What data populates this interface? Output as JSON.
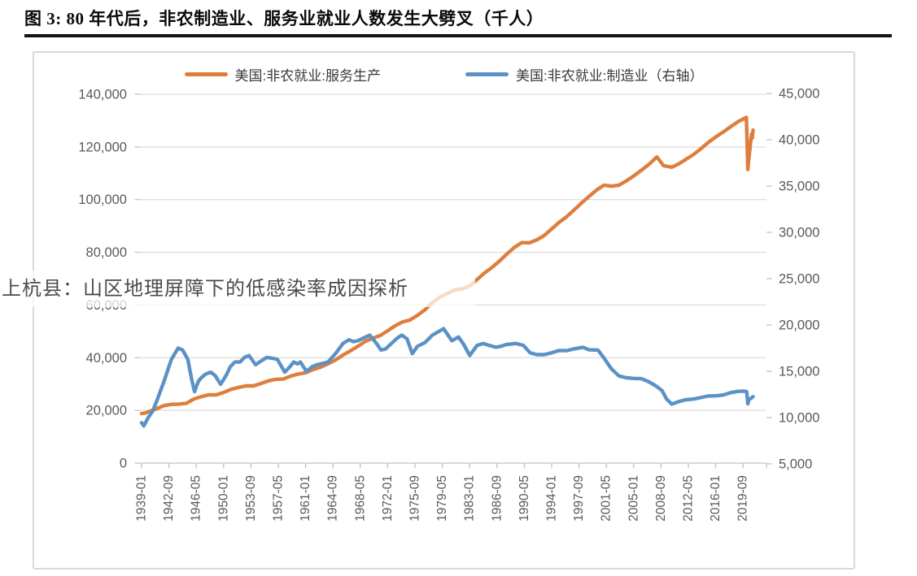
{
  "figure": {
    "title": "图 3: 80 年代后，非农制造业、服务业就业人数发生大劈叉（千人）",
    "unit": "千人"
  },
  "watermark": {
    "text": "上杭县：山区地理屏障下的低感染率成因探析"
  },
  "legend": {
    "items": [
      {
        "label": "美国:非农就业:服务生产",
        "color": "#DE7E3D"
      },
      {
        "label": "美国:非农就业:制造业（右轴）",
        "color": "#5B92C6"
      }
    ]
  },
  "colors": {
    "services_line": "#DE7E3D",
    "manufacturing_line": "#5B92C6",
    "gridline": "#DADADA",
    "axis_line": "#C2C2C2",
    "axis_text": "#595959",
    "title_text": "#0a0a0a"
  },
  "chart_data": {
    "type": "line",
    "title": "图 3: 80 年代后，非农制造业、服务业就业人数发生大劈叉（千人）",
    "unit": "千人",
    "grid": "horizontal",
    "legend_position": "top",
    "x_axis": {
      "start": "1939-01",
      "end": "2020-12",
      "tick_interval_months": 44,
      "tick_labels": [
        "1939-01",
        "1942-09",
        "1946-05",
        "1950-01",
        "1953-09",
        "1957-05",
        "1961-01",
        "1964-09",
        "1968-05",
        "1972-01",
        "1975-09",
        "1979-05",
        "1983-01",
        "1986-09",
        "1990-05",
        "1994-01",
        "1997-09",
        "2001-05",
        "2005-01",
        "2008-09",
        "2012-05",
        "2016-01",
        "2019-09"
      ]
    },
    "y_axis_left": {
      "min": 0,
      "max": 140000,
      "step": 20000,
      "tick_values": [
        140000,
        120000,
        100000,
        80000,
        60000,
        40000,
        20000,
        0
      ],
      "tick_labels": [
        "140,000",
        "120,000",
        "100,000",
        "80,000",
        "60,000",
        "40,000",
        "20,000",
        "0"
      ]
    },
    "y_axis_right": {
      "min": 5000,
      "max": 45000,
      "step": 5000,
      "tick_values": [
        45000,
        40000,
        35000,
        30000,
        25000,
        20000,
        15000,
        10000,
        5000
      ],
      "tick_labels": [
        "45,000",
        "40,000",
        "35,000",
        "30,000",
        "25,000",
        "20,000",
        "15,000",
        "10,000",
        "5,000"
      ]
    },
    "series": [
      {
        "name": "美国:非农就业:服务生产",
        "axis": "left",
        "color": "#DE7E3D",
        "points": [
          [
            1939.0,
            18800
          ],
          [
            1939.5,
            19000
          ],
          [
            1940,
            19600
          ],
          [
            1941,
            20600
          ],
          [
            1942,
            21800
          ],
          [
            1943,
            22300
          ],
          [
            1944,
            22400
          ],
          [
            1945,
            22700
          ],
          [
            1946,
            24300
          ],
          [
            1947,
            25200
          ],
          [
            1948,
            25900
          ],
          [
            1949,
            25900
          ],
          [
            1950,
            26800
          ],
          [
            1951,
            28000
          ],
          [
            1952,
            28700
          ],
          [
            1953,
            29300
          ],
          [
            1954,
            29300
          ],
          [
            1955,
            30200
          ],
          [
            1956,
            31200
          ],
          [
            1957,
            31800
          ],
          [
            1958,
            31900
          ],
          [
            1959,
            33000
          ],
          [
            1960,
            33800
          ],
          [
            1961,
            34300
          ],
          [
            1962,
            35500
          ],
          [
            1963,
            36400
          ],
          [
            1964,
            37700
          ],
          [
            1965,
            39100
          ],
          [
            1966,
            41000
          ],
          [
            1967,
            42600
          ],
          [
            1968,
            44300
          ],
          [
            1969,
            46200
          ],
          [
            1970,
            47400
          ],
          [
            1971,
            48400
          ],
          [
            1972,
            50200
          ],
          [
            1973,
            52100
          ],
          [
            1974,
            53600
          ],
          [
            1975,
            54300
          ],
          [
            1976,
            56100
          ],
          [
            1977,
            58200
          ],
          [
            1978,
            60900
          ],
          [
            1979,
            63000
          ],
          [
            1980,
            64400
          ],
          [
            1981,
            65700
          ],
          [
            1982,
            66100
          ],
          [
            1983,
            67200
          ],
          [
            1984,
            69700
          ],
          [
            1985,
            72200
          ],
          [
            1986,
            74300
          ],
          [
            1987,
            76700
          ],
          [
            1988,
            79400
          ],
          [
            1989,
            81900
          ],
          [
            1990,
            83700
          ],
          [
            1991,
            83600
          ],
          [
            1992,
            84700
          ],
          [
            1993,
            86400
          ],
          [
            1994,
            88900
          ],
          [
            1995,
            91400
          ],
          [
            1996,
            93500
          ],
          [
            1997,
            96100
          ],
          [
            1998,
            98700
          ],
          [
            1999,
            101200
          ],
          [
            2000,
            103600
          ],
          [
            2001,
            105500
          ],
          [
            2002,
            105100
          ],
          [
            2003,
            105500
          ],
          [
            2004,
            107100
          ],
          [
            2005,
            109000
          ],
          [
            2006,
            111100
          ],
          [
            2007,
            113300
          ],
          [
            2008.1,
            116200
          ],
          [
            2009,
            112900
          ],
          [
            2010.1,
            112300
          ],
          [
            2011,
            113500
          ],
          [
            2012,
            115300
          ],
          [
            2013,
            117100
          ],
          [
            2014,
            119300
          ],
          [
            2015,
            121700
          ],
          [
            2016,
            123800
          ],
          [
            2017,
            125700
          ],
          [
            2018,
            127700
          ],
          [
            2019,
            129600
          ],
          [
            2020.1,
            131200
          ],
          [
            2020.3,
            111400
          ],
          [
            2020.5,
            117200
          ],
          [
            2020.65,
            121200
          ],
          [
            2020.8,
            124900
          ],
          [
            2020.9,
            123400
          ],
          [
            2021.0,
            126400
          ]
        ]
      },
      {
        "name": "美国:非农就业:制造业",
        "axis": "right",
        "color": "#5B92C6",
        "points": [
          [
            1939.0,
            9450
          ],
          [
            1939.3,
            9100
          ],
          [
            1939.9,
            10000
          ],
          [
            1940.5,
            10700
          ],
          [
            1941.0,
            11700
          ],
          [
            1942.0,
            13900
          ],
          [
            1943.0,
            16300
          ],
          [
            1943.9,
            17500
          ],
          [
            1944.5,
            17300
          ],
          [
            1945.2,
            16300
          ],
          [
            1945.7,
            14200
          ],
          [
            1946.1,
            12800
          ],
          [
            1946.6,
            13900
          ],
          [
            1947.0,
            14300
          ],
          [
            1947.6,
            14700
          ],
          [
            1948.3,
            14900
          ],
          [
            1948.9,
            14500
          ],
          [
            1949.6,
            13600
          ],
          [
            1950.3,
            14500
          ],
          [
            1950.9,
            15500
          ],
          [
            1951.5,
            16000
          ],
          [
            1952.2,
            16000
          ],
          [
            1952.8,
            16500
          ],
          [
            1953.4,
            16700
          ],
          [
            1954.3,
            15700
          ],
          [
            1955.0,
            16100
          ],
          [
            1955.8,
            16500
          ],
          [
            1956.5,
            16400
          ],
          [
            1957.2,
            16300
          ],
          [
            1958.2,
            14900
          ],
          [
            1958.9,
            15500
          ],
          [
            1959.4,
            16000
          ],
          [
            1959.9,
            15800
          ],
          [
            1960.3,
            16000
          ],
          [
            1961.1,
            15000
          ],
          [
            1961.9,
            15500
          ],
          [
            1962.5,
            15700
          ],
          [
            1963.0,
            15800
          ],
          [
            1964.0,
            16000
          ],
          [
            1965.0,
            16900
          ],
          [
            1966.0,
            18000
          ],
          [
            1966.8,
            18400
          ],
          [
            1967.4,
            18200
          ],
          [
            1968.0,
            18300
          ],
          [
            1969.6,
            18900
          ],
          [
            1970.6,
            17900
          ],
          [
            1971.1,
            17300
          ],
          [
            1971.7,
            17400
          ],
          [
            1972.5,
            18000
          ],
          [
            1973.3,
            18600
          ],
          [
            1973.9,
            18900
          ],
          [
            1974.6,
            18500
          ],
          [
            1975.3,
            16900
          ],
          [
            1976.0,
            17700
          ],
          [
            1977.0,
            18100
          ],
          [
            1978.0,
            18900
          ],
          [
            1979.5,
            19600
          ],
          [
            1980.6,
            18300
          ],
          [
            1981.5,
            18700
          ],
          [
            1982.2,
            17900
          ],
          [
            1983.0,
            16700
          ],
          [
            1984.0,
            17800
          ],
          [
            1984.8,
            18000
          ],
          [
            1985.6,
            17800
          ],
          [
            1986.5,
            17600
          ],
          [
            1987.2,
            17700
          ],
          [
            1988.0,
            17900
          ],
          [
            1989.2,
            18000
          ],
          [
            1990.2,
            17800
          ],
          [
            1991.1,
            17000
          ],
          [
            1992.0,
            16800
          ],
          [
            1993.0,
            16800
          ],
          [
            1994.0,
            17000
          ],
          [
            1995.0,
            17250
          ],
          [
            1996.0,
            17230
          ],
          [
            1997.0,
            17420
          ],
          [
            1998.2,
            17600
          ],
          [
            1999.0,
            17320
          ],
          [
            2000.2,
            17290
          ],
          [
            2001.0,
            16450
          ],
          [
            2002.0,
            15260
          ],
          [
            2003.0,
            14500
          ],
          [
            2004.0,
            14300
          ],
          [
            2005.0,
            14230
          ],
          [
            2006.0,
            14200
          ],
          [
            2007.0,
            13880
          ],
          [
            2008.0,
            13400
          ],
          [
            2008.8,
            12900
          ],
          [
            2009.4,
            12000
          ],
          [
            2010.1,
            11460
          ],
          [
            2011.0,
            11720
          ],
          [
            2012.0,
            11930
          ],
          [
            2013.0,
            12000
          ],
          [
            2014.0,
            12160
          ],
          [
            2015.0,
            12330
          ],
          [
            2016.0,
            12350
          ],
          [
            2017.0,
            12440
          ],
          [
            2018.0,
            12690
          ],
          [
            2019.0,
            12830
          ],
          [
            2019.8,
            12850
          ],
          [
            2020.15,
            12790
          ],
          [
            2020.3,
            11480
          ],
          [
            2020.45,
            11950
          ],
          [
            2020.7,
            12070
          ],
          [
            2021.0,
            12260
          ]
        ]
      }
    ]
  }
}
